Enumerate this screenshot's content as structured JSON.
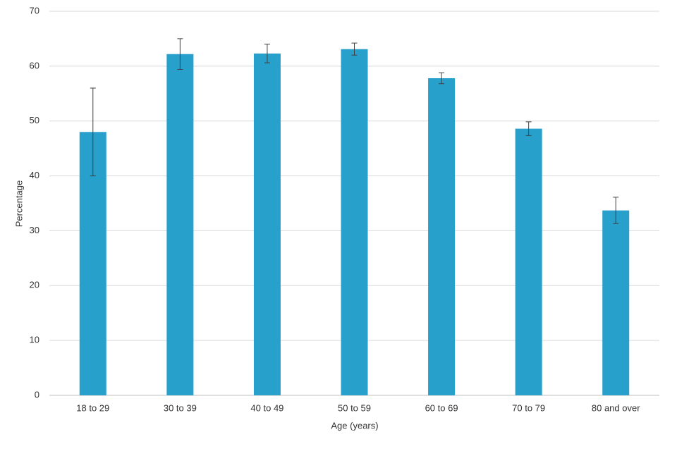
{
  "chart_data": {
    "type": "bar",
    "x_label": "Age (years)",
    "y_label": "Percentage",
    "categories": [
      "18 to 29",
      "30 to 39",
      "40 to 49",
      "50 to 59",
      "60 to 69",
      "70 to 79",
      "80 and over"
    ],
    "values": [
      48,
      62.2,
      62.3,
      63.1,
      57.8,
      48.6,
      33.7
    ],
    "errors": [
      8,
      2.8,
      1.7,
      1.1,
      1.0,
      1.25,
      2.4
    ],
    "color": "#27a0cc",
    "ylim": [
      0,
      70
    ],
    "yticks": [
      0,
      10,
      20,
      30,
      40,
      50,
      60,
      70
    ],
    "grid": true
  }
}
